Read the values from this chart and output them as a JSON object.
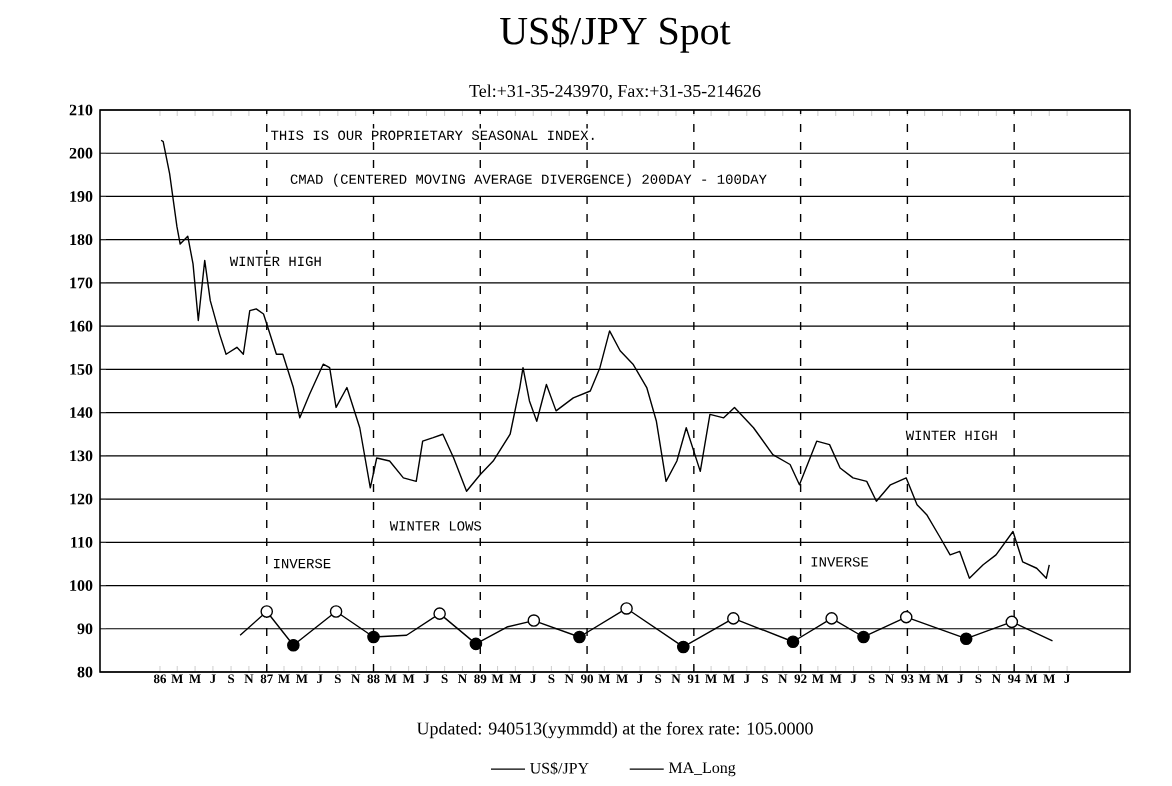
{
  "chart_data": {
    "type": "line",
    "title": "US$/JPY Spot",
    "subtitle": "Tel:+31-35-243970, Fax:+31-35-214626",
    "xlim": [
      "1985-06-10",
      "1995-02-01"
    ],
    "ylim": [
      80,
      210
    ],
    "yticks": [
      80,
      90,
      100,
      110,
      120,
      130,
      140,
      150,
      160,
      170,
      180,
      190,
      200,
      210
    ],
    "xticks": [
      {
        "value": "1986-01",
        "label": "86"
      },
      {
        "value": "1986-03",
        "label": "M"
      },
      {
        "value": "1986-05",
        "label": "M"
      },
      {
        "value": "1986-07",
        "label": "J"
      },
      {
        "value": "1986-09",
        "label": "S"
      },
      {
        "value": "1986-11",
        "label": "N"
      },
      {
        "value": "1987-01",
        "label": "87"
      },
      {
        "value": "1987-03",
        "label": "M"
      },
      {
        "value": "1987-05",
        "label": "M"
      },
      {
        "value": "1987-07",
        "label": "J"
      },
      {
        "value": "1987-09",
        "label": "S"
      },
      {
        "value": "1987-11",
        "label": "N"
      },
      {
        "value": "1988-01",
        "label": "88"
      },
      {
        "value": "1988-03",
        "label": "M"
      },
      {
        "value": "1988-05",
        "label": "M"
      },
      {
        "value": "1988-07",
        "label": "J"
      },
      {
        "value": "1988-09",
        "label": "S"
      },
      {
        "value": "1988-11",
        "label": "N"
      },
      {
        "value": "1989-01",
        "label": "89"
      },
      {
        "value": "1989-03",
        "label": "M"
      },
      {
        "value": "1989-05",
        "label": "M"
      },
      {
        "value": "1989-07",
        "label": "J"
      },
      {
        "value": "1989-09",
        "label": "S"
      },
      {
        "value": "1989-11",
        "label": "N"
      },
      {
        "value": "1990-01",
        "label": "90"
      },
      {
        "value": "1990-03",
        "label": "M"
      },
      {
        "value": "1990-05",
        "label": "M"
      },
      {
        "value": "1990-07",
        "label": "J"
      },
      {
        "value": "1990-09",
        "label": "S"
      },
      {
        "value": "1990-11",
        "label": "N"
      },
      {
        "value": "1991-01",
        "label": "91"
      },
      {
        "value": "1991-03",
        "label": "M"
      },
      {
        "value": "1991-05",
        "label": "M"
      },
      {
        "value": "1991-07",
        "label": "J"
      },
      {
        "value": "1991-09",
        "label": "S"
      },
      {
        "value": "1991-11",
        "label": "N"
      },
      {
        "value": "1992-01",
        "label": "92"
      },
      {
        "value": "1992-03",
        "label": "M"
      },
      {
        "value": "1992-05",
        "label": "M"
      },
      {
        "value": "1992-07",
        "label": "J"
      },
      {
        "value": "1992-09",
        "label": "S"
      },
      {
        "value": "1992-11",
        "label": "N"
      },
      {
        "value": "1993-01",
        "label": "93"
      },
      {
        "value": "1993-03",
        "label": "M"
      },
      {
        "value": "1993-05",
        "label": "M"
      },
      {
        "value": "1993-07",
        "label": "J"
      },
      {
        "value": "1993-09",
        "label": "S"
      },
      {
        "value": "1993-11",
        "label": "N"
      },
      {
        "value": "1994-01",
        "label": "94"
      },
      {
        "value": "1994-03",
        "label": "M"
      },
      {
        "value": "1994-05",
        "label": "M"
      },
      {
        "value": "1994-07",
        "label": "J"
      }
    ],
    "grid": "y",
    "legend": "bottom",
    "series": [
      {
        "name": "US$/JPY",
        "color": "#000000",
        "x": [
          "1986-01-05",
          "1986-01-12",
          "1986-02-03",
          "1986-02-28",
          "1986-03-11",
          "1986-04-06",
          "1986-04-24",
          "1986-05-12",
          "1986-06-03",
          "1986-06-22",
          "1986-07-24",
          "1986-08-15",
          "1986-09-21",
          "1986-10-13",
          "1986-11-04",
          "1986-11-26",
          "1986-12-21",
          "1987-01-12",
          "1987-02-03",
          "1987-02-25",
          "1987-04-02",
          "1987-04-24",
          "1987-05-27",
          "1987-07-13",
          "1987-08-04",
          "1987-08-26",
          "1987-10-02",
          "1987-11-15",
          "1987-12-21",
          "1988-01-12",
          "1988-02-25",
          "1988-04-13",
          "1988-05-27",
          "1988-06-18",
          "1988-07-24",
          "1988-08-26",
          "1988-10-02",
          "1988-11-15",
          "1989-01-01",
          "1989-02-14",
          "1989-04-13",
          "1989-05-16",
          "1989-05-27",
          "1989-06-18",
          "1989-07-13",
          "1989-08-15",
          "1989-09-17",
          "1989-11-15",
          "1990-01-12",
          "1990-02-14",
          "1990-03-19",
          "1990-04-24",
          "1990-06-07",
          "1990-07-24",
          "1990-08-26",
          "1990-09-28",
          "1990-11-04",
          "1990-12-06",
          "1991-01-23",
          "1991-02-25",
          "1991-04-13",
          "1991-05-20",
          "1991-07-24",
          "1991-09-28",
          "1991-11-26",
          "1991-12-28",
          "1992-02-25",
          "1992-04-10",
          "1992-05-16",
          "1992-06-29",
          "1992-08-15",
          "1992-09-17",
          "1992-11-04",
          "1992-12-28",
          "1993-02-03",
          "1993-03-08",
          "1993-04-24",
          "1993-05-27",
          "1993-06-29",
          "1993-08-01",
          "1993-09-17",
          "1993-10-31",
          "1993-12-28",
          "1994-01-30",
          "1994-03-19",
          "1994-04-21",
          "1994-05-01"
        ],
        "values": [
          203,
          202.7,
          195.3,
          183,
          179,
          180.8,
          174.4,
          161.3,
          175.2,
          165.9,
          158.1,
          153.5,
          155.1,
          153.5,
          163.6,
          164,
          162.8,
          158.2,
          153.5,
          153.5,
          145.8,
          138.8,
          144.2,
          151.2,
          150.4,
          141.2,
          145.8,
          136.5,
          122.6,
          129.5,
          128.8,
          124.9,
          124.1,
          133.4,
          134.2,
          135,
          129.5,
          121.8,
          125.7,
          128.8,
          135,
          145.8,
          150.4,
          142.7,
          138,
          146.5,
          140.4,
          143.4,
          145,
          150.4,
          158.9,
          154.3,
          151.2,
          145.8,
          138,
          124.1,
          128.8,
          136.5,
          126.4,
          139.6,
          138.8,
          141.2,
          136.5,
          130.3,
          128,
          123.3,
          133.4,
          132.6,
          127.2,
          124.9,
          124.1,
          119.5,
          123.3,
          124.9,
          118.7,
          116.4,
          111,
          107.1,
          107.9,
          101.7,
          104.8,
          107.1,
          112.5,
          105.5,
          104,
          101.7,
          104.8
        ]
      },
      {
        "name": "MA_Long",
        "color": "#000000",
        "x": [
          "1986-10-02",
          "1987-01-01",
          "1987-04-02",
          "1987-08-26",
          "1988-01-01",
          "1988-04-24",
          "1988-08-15",
          "1988-12-17",
          "1989-04-02",
          "1989-07-03",
          "1989-12-06",
          "1990-05-16",
          "1990-11-26",
          "1991-05-16",
          "1991-12-06",
          "1992-04-17",
          "1992-08-04",
          "1992-12-28",
          "1993-07-21",
          "1993-12-24",
          "1994-05-12"
        ],
        "values": [
          88.5,
          94,
          86.2,
          94,
          88.1,
          88.5,
          93.5,
          86.5,
          90.4,
          91.9,
          88.1,
          94.7,
          85.8,
          92.4,
          87,
          92.4,
          88.1,
          92.7,
          87.7,
          91.6,
          87.2
        ]
      },
      {
        "type": "scatter",
        "marker": "circle",
        "color": "#ffffff",
        "x": [
          "1987-01-01",
          "1987-08-26",
          "1988-08-15",
          "1989-07-03",
          "1990-05-16",
          "1991-05-16",
          "1992-04-17",
          "1992-12-28",
          "1993-12-24"
        ],
        "values": [
          94,
          94,
          93.5,
          91.9,
          94.7,
          92.4,
          92.4,
          92.7,
          91.6
        ]
      },
      {
        "type": "scatter",
        "marker": "circle",
        "color": "#000000",
        "x": [
          "1987-04-02",
          "1988-01-01",
          "1988-12-17",
          "1989-12-06",
          "1990-11-26",
          "1991-12-06",
          "1992-08-04",
          "1993-07-21"
        ],
        "values": [
          86.2,
          88.1,
          86.5,
          88.1,
          85.8,
          87,
          88.1,
          87.7
        ]
      }
    ],
    "ref_lines": [
      {
        "axis": "x",
        "value": "1987-01",
        "line_style": "dashed"
      },
      {
        "axis": "x",
        "value": "1988-01",
        "line_style": "dashed"
      },
      {
        "axis": "x",
        "value": "1989-01",
        "line_style": "dashed"
      },
      {
        "axis": "x",
        "value": "1990-01",
        "line_style": "dashed"
      },
      {
        "axis": "x",
        "value": "1991-01",
        "line_style": "dashed"
      },
      {
        "axis": "x",
        "value": "1992-01",
        "line_style": "dashed"
      },
      {
        "axis": "x",
        "value": "1993-01",
        "line_style": "dashed"
      },
      {
        "axis": "x",
        "value": "1994-01",
        "line_style": "dashed"
      }
    ],
    "annotations": [
      "THIS IS OUR PROPRIETARY SEASONAL INDEX.",
      "CMAD (CENTERED MOVING AVERAGE DIVERGENCE) 200DAY - 100DAY",
      {
        "text": "WINTER HIGH",
        "x": "1987-02",
        "y": 175
      },
      "WINTER LOWS",
      "INVERSE",
      "INVERSE",
      "WINTER HIGH",
      "Updated: 940513(yymmdd) at the forex rate: 105.0000"
    ]
  }
}
